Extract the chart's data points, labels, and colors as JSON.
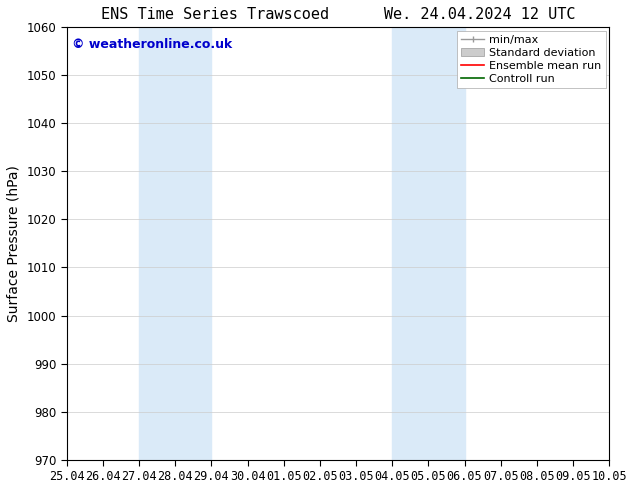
{
  "title_left": "ENS Time Series Trawscoed",
  "title_right": "We. 24.04.2024 12 UTC",
  "ylabel": "Surface Pressure (hPa)",
  "ylim": [
    970,
    1060
  ],
  "yticks": [
    970,
    980,
    990,
    1000,
    1010,
    1020,
    1030,
    1040,
    1050,
    1060
  ],
  "x_tick_labels": [
    "25.04",
    "26.04",
    "27.04",
    "28.04",
    "29.04",
    "30.04",
    "01.05",
    "02.05",
    "03.05",
    "04.05",
    "05.05",
    "06.05",
    "07.05",
    "08.05",
    "09.05",
    "10.05"
  ],
  "shaded_regions": [
    {
      "xstart": 2.0,
      "xend": 4.0,
      "color": "#daeaf8"
    },
    {
      "xstart": 9.0,
      "xend": 11.0,
      "color": "#daeaf8"
    }
  ],
  "watermark_text": "© weatheronline.co.uk",
  "watermark_color": "#0000cc",
  "bg_color": "#ffffff",
  "spine_color": "#000000",
  "grid_color": "#cccccc",
  "title_fontsize": 11,
  "axis_label_fontsize": 10,
  "tick_fontsize": 8.5,
  "legend_fontsize": 8,
  "title_gap": "     "
}
